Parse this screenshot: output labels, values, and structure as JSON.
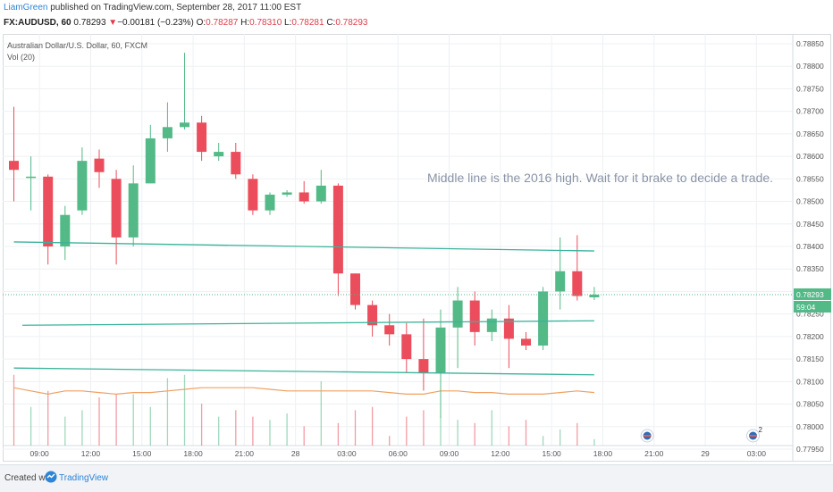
{
  "header": {
    "author": "LiamGreen",
    "published": "published on TradingView.com, September 28, 2017 11:00 EST",
    "symbol": "FX:AUDUSD, 60",
    "last": "0.78293",
    "arrow": "▼",
    "change": "−0.00181 (−0.23%)",
    "o_label": "O:",
    "o_value": "0.78287",
    "h_label": "H:",
    "h_value": "0.78310",
    "l_label": "L:",
    "l_value": "0.78281",
    "c_label": "C:",
    "c_value": "0.78293"
  },
  "legend": {
    "instrument": "Australian Dollar/U.S. Dollar, 60, FXCM",
    "volume": "Vol (20)"
  },
  "footer": {
    "created": "Created with",
    "brand": "TradingView"
  },
  "colors": {
    "up": "#53b987",
    "down": "#eb4d5c",
    "trendline": "#3ab39a",
    "ma": "#f0a060",
    "grid": "#eef0f3",
    "axis_text": "#555555"
  },
  "chart_data": {
    "type": "candlestick",
    "annotation": "Middle line is the 2016 high. Wait for it brake to decide a trade.",
    "price_axis": {
      "min": 0.7795,
      "max": 0.7885,
      "ticks": [
        "0.78850",
        "0.78800",
        "0.78750",
        "0.78700",
        "0.78650",
        "0.78600",
        "0.78550",
        "0.78500",
        "0.78450",
        "0.78400",
        "0.78350",
        "0.78300",
        "0.78250",
        "0.78200",
        "0.78150",
        "0.78100",
        "0.78050",
        "0.78000",
        "0.77950"
      ],
      "last_price_label": "0.78293",
      "countdown_label": "59:04"
    },
    "time_axis": {
      "labels": [
        {
          "t": 1.5,
          "label": "09:00"
        },
        {
          "t": 4.5,
          "label": "12:00"
        },
        {
          "t": 7.5,
          "label": "15:00"
        },
        {
          "t": 10.5,
          "label": "18:00"
        },
        {
          "t": 13.5,
          "label": "21:00"
        },
        {
          "t": 16.5,
          "label": "28"
        },
        {
          "t": 19.5,
          "label": "03:00"
        },
        {
          "t": 22.5,
          "label": "06:00"
        },
        {
          "t": 25.5,
          "label": "09:00"
        },
        {
          "t": 28.5,
          "label": "12:00"
        },
        {
          "t": 31.5,
          "label": "15:00"
        },
        {
          "t": 34.5,
          "label": "18:00"
        },
        {
          "t": 37.5,
          "label": "21:00"
        },
        {
          "t": 40.5,
          "label": "29"
        },
        {
          "t": 43.5,
          "label": "03:00"
        }
      ]
    },
    "candles": [
      {
        "o": 0.7859,
        "h": 0.7871,
        "l": 0.785,
        "c": 0.7857
      },
      {
        "o": 0.78555,
        "h": 0.786,
        "l": 0.7848,
        "c": 0.78555
      },
      {
        "o": 0.78555,
        "h": 0.7856,
        "l": 0.7836,
        "c": 0.784
      },
      {
        "o": 0.784,
        "h": 0.7849,
        "l": 0.7837,
        "c": 0.7847
      },
      {
        "o": 0.7848,
        "h": 0.7862,
        "l": 0.7847,
        "c": 0.7859
      },
      {
        "o": 0.78595,
        "h": 0.78615,
        "l": 0.7853,
        "c": 0.78565
      },
      {
        "o": 0.7855,
        "h": 0.7857,
        "l": 0.7836,
        "c": 0.7842
      },
      {
        "o": 0.7842,
        "h": 0.7858,
        "l": 0.784,
        "c": 0.7854
      },
      {
        "o": 0.7854,
        "h": 0.7867,
        "l": 0.7854,
        "c": 0.7864
      },
      {
        "o": 0.7864,
        "h": 0.7872,
        "l": 0.7861,
        "c": 0.78665
      },
      {
        "o": 0.78665,
        "h": 0.7883,
        "l": 0.7866,
        "c": 0.78675
      },
      {
        "o": 0.78675,
        "h": 0.7869,
        "l": 0.7859,
        "c": 0.7861
      },
      {
        "o": 0.786,
        "h": 0.7863,
        "l": 0.7859,
        "c": 0.7861
      },
      {
        "o": 0.7861,
        "h": 0.7863,
        "l": 0.7855,
        "c": 0.7856
      },
      {
        "o": 0.7855,
        "h": 0.7856,
        "l": 0.7847,
        "c": 0.7848
      },
      {
        "o": 0.7848,
        "h": 0.7852,
        "l": 0.7847,
        "c": 0.78515
      },
      {
        "o": 0.78515,
        "h": 0.78525,
        "l": 0.7851,
        "c": 0.7852
      },
      {
        "o": 0.7852,
        "h": 0.78545,
        "l": 0.78495,
        "c": 0.785
      },
      {
        "o": 0.785,
        "h": 0.7857,
        "l": 0.78495,
        "c": 0.78535
      },
      {
        "o": 0.78535,
        "h": 0.7854,
        "l": 0.7829,
        "c": 0.7834
      },
      {
        "o": 0.7834,
        "h": 0.7834,
        "l": 0.7826,
        "c": 0.7827
      },
      {
        "o": 0.7827,
        "h": 0.7828,
        "l": 0.782,
        "c": 0.78225
      },
      {
        "o": 0.78225,
        "h": 0.7825,
        "l": 0.7818,
        "c": 0.78205
      },
      {
        "o": 0.78205,
        "h": 0.7823,
        "l": 0.7812,
        "c": 0.7815
      },
      {
        "o": 0.7815,
        "h": 0.7824,
        "l": 0.7808,
        "c": 0.7812
      },
      {
        "o": 0.7812,
        "h": 0.7826,
        "l": 0.7802,
        "c": 0.7822
      },
      {
        "o": 0.7822,
        "h": 0.7831,
        "l": 0.7813,
        "c": 0.7828
      },
      {
        "o": 0.7828,
        "h": 0.783,
        "l": 0.7818,
        "c": 0.7821
      },
      {
        "o": 0.7821,
        "h": 0.7826,
        "l": 0.7819,
        "c": 0.7824
      },
      {
        "o": 0.7824,
        "h": 0.7827,
        "l": 0.7813,
        "c": 0.78195
      },
      {
        "o": 0.78195,
        "h": 0.7821,
        "l": 0.7817,
        "c": 0.7818
      },
      {
        "o": 0.7818,
        "h": 0.7831,
        "l": 0.7817,
        "c": 0.783
      },
      {
        "o": 0.783,
        "h": 0.7842,
        "l": 0.7826,
        "c": 0.78345
      },
      {
        "o": 0.78345,
        "h": 0.78425,
        "l": 0.7828,
        "c": 0.7829
      },
      {
        "o": 0.78287,
        "h": 0.7831,
        "l": 0.78281,
        "c": 0.78293
      }
    ],
    "volumes": [
      22,
      12,
      17,
      9,
      11,
      15,
      16,
      16,
      12,
      21,
      22,
      13,
      9,
      11,
      9,
      8,
      10,
      6,
      20,
      7,
      11,
      12,
      3,
      9,
      11,
      9,
      8,
      7,
      11,
      6,
      8,
      3,
      5,
      7,
      2
    ],
    "volume_ma": [
      18,
      17,
      16,
      17,
      17,
      16.5,
      16,
      16.5,
      16.5,
      17,
      17.5,
      18,
      18,
      18,
      18,
      17.5,
      17,
      17,
      17,
      17,
      17,
      17,
      16.5,
      16,
      16,
      17,
      17,
      16.5,
      16.5,
      16,
      16,
      16,
      16.5,
      17,
      16.5
    ],
    "trendlines": [
      {
        "p1": [
          0,
          0.7841
        ],
        "p2": [
          34,
          0.7839
        ]
      },
      {
        "p1": [
          0.5,
          0.78225
        ],
        "p2": [
          34,
          0.78235
        ]
      },
      {
        "p1": [
          0,
          0.7813
        ],
        "p2": [
          34,
          0.78115
        ]
      }
    ],
    "event_markers": [
      {
        "t": 37.1,
        "label": ""
      },
      {
        "t": 43.3,
        "label": "2"
      }
    ]
  }
}
